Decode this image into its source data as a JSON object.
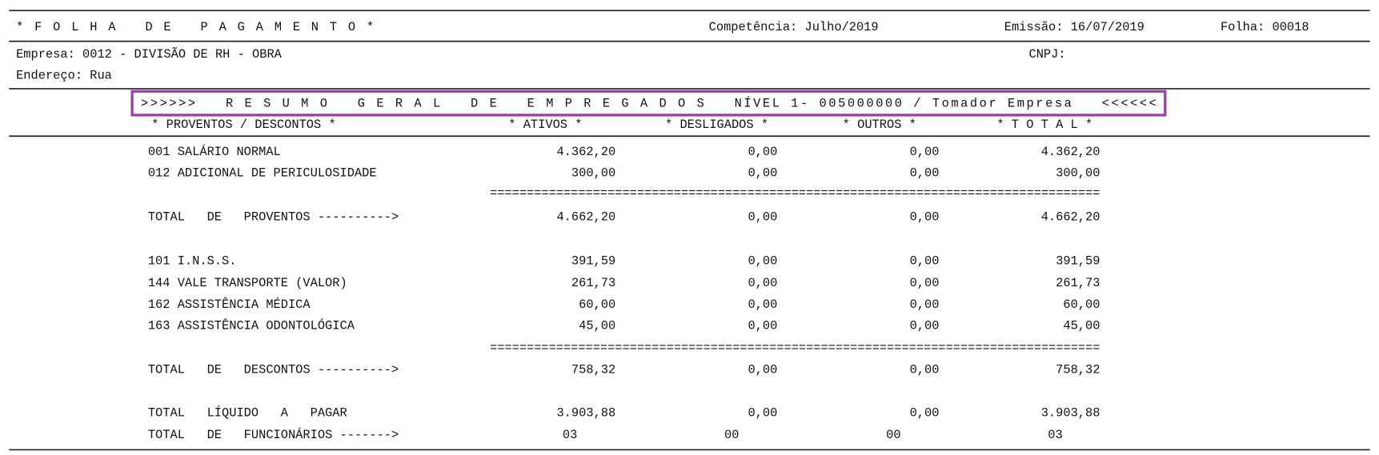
{
  "header": {
    "title": "* F O L H A   D E   P A G A M E N T O *",
    "competencia": "Competência: Julho/2019",
    "emissao": "Emissão: 16/07/2019",
    "folha": "Folha: 00018"
  },
  "company": {
    "empresa": "Empresa: 0012 - DIVISÃO DE RH - OBRA",
    "cnpj": "CNPJ:",
    "endereco": "Endereço: Rua"
  },
  "summary_title": ">>>>>>   R E S U M O   G E R A L   D E   E M P R E G A D O S   NÍVEL 1- 005000000 / Tomador Empresa   <<<<<<",
  "table": {
    "columns": [
      "* PROVENTOS / DESCONTOS *",
      "* ATIVOS *",
      "* DESLIGADOS *",
      "* OUTROS *",
      "* T O T A L *"
    ],
    "rows": [
      [
        "001 SALÁRIO NORMAL",
        "4.362,20",
        "0,00",
        "0,00",
        "4.362,20"
      ],
      [
        "012 ADICIONAL DE PERICULOSIDADE",
        "300,00",
        "0,00",
        "0,00",
        "300,00"
      ],
      [
        "==================================================================================="
      ],
      [
        "TOTAL   DE   PROVENTOS ---------->",
        "4.662,20",
        "0,00",
        "0,00",
        "4.662,20"
      ],
      [
        "101 I.N.S.S.",
        "391,59",
        "0,00",
        "0,00",
        "391,59"
      ],
      [
        "144 VALE TRANSPORTE (VALOR)",
        "261,73",
        "0,00",
        "0,00",
        "261,73"
      ],
      [
        "162 ASSISTÊNCIA MÉDICA",
        "60,00",
        "0,00",
        "0,00",
        "60,00"
      ],
      [
        "163 ASSISTÊNCIA ODONTOLÓGICA",
        "45,00",
        "0,00",
        "0,00",
        "45,00"
      ],
      [
        "==================================================================================="
      ],
      [
        "TOTAL   DE   DESCONTOS ---------->",
        "758,32",
        "0,00",
        "0,00",
        "758,32"
      ],
      [
        "TOTAL   LÍQUIDO   A   PAGAR",
        "3.903,88",
        "0,00",
        "0,00",
        "3.903,88"
      ],
      [
        "TOTAL   DE   FUNCIONÁRIOS ------->",
        "03",
        "00",
        "00",
        "03"
      ]
    ]
  }
}
